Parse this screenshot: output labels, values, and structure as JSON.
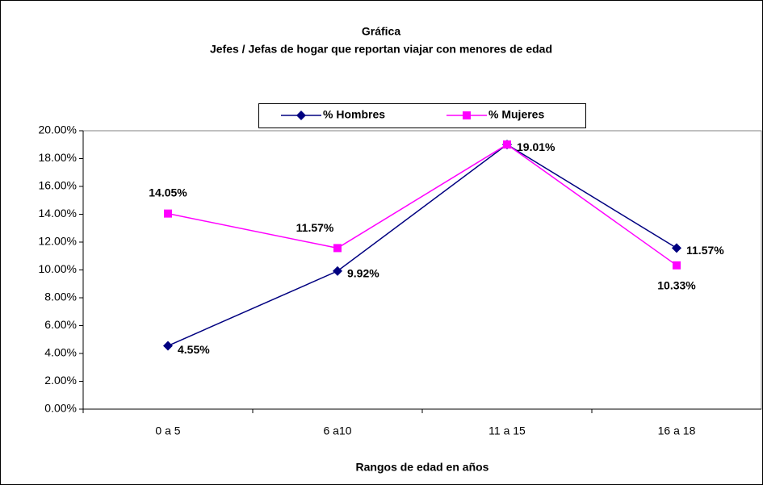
{
  "chart_data": {
    "type": "line",
    "title": "Gráfica",
    "subtitle": "Jefes / Jefas de hogar que reportan viajar con menores de edad",
    "x_label": "Rangos de edad en años",
    "categories": [
      "0 a 5",
      "6 a10",
      "11 a 15",
      "16 a 18"
    ],
    "series": [
      {
        "name": "% Hombres",
        "color": "#000080",
        "marker": "diamond",
        "values": [
          4.55,
          9.92,
          19.01,
          11.57
        ],
        "value_labels": [
          "4.55%",
          "9.92%",
          "19.01%",
          "11.57%"
        ]
      },
      {
        "name": "% Mujeres",
        "color": "#ff00ff",
        "marker": "square",
        "values": [
          14.05,
          11.57,
          19.01,
          10.33
        ],
        "value_labels": [
          "14.05%",
          "11.57%",
          null,
          "10.33%"
        ]
      }
    ],
    "ylim": [
      0,
      20
    ],
    "yticks": [
      {
        "value": 0,
        "label": "0.00%"
      },
      {
        "value": 2,
        "label": "2.00%"
      },
      {
        "value": 4,
        "label": "4.00%"
      },
      {
        "value": 6,
        "label": "6.00%"
      },
      {
        "value": 8,
        "label": "8.00%"
      },
      {
        "value": 10,
        "label": "10.00%"
      },
      {
        "value": 12,
        "label": "12.00%"
      },
      {
        "value": 14,
        "label": "14.00%"
      },
      {
        "value": 16,
        "label": "16.00%"
      },
      {
        "value": 18,
        "label": "18.00%"
      },
      {
        "value": 20,
        "label": "20.00%"
      }
    ],
    "grid": false,
    "legend": "top"
  }
}
